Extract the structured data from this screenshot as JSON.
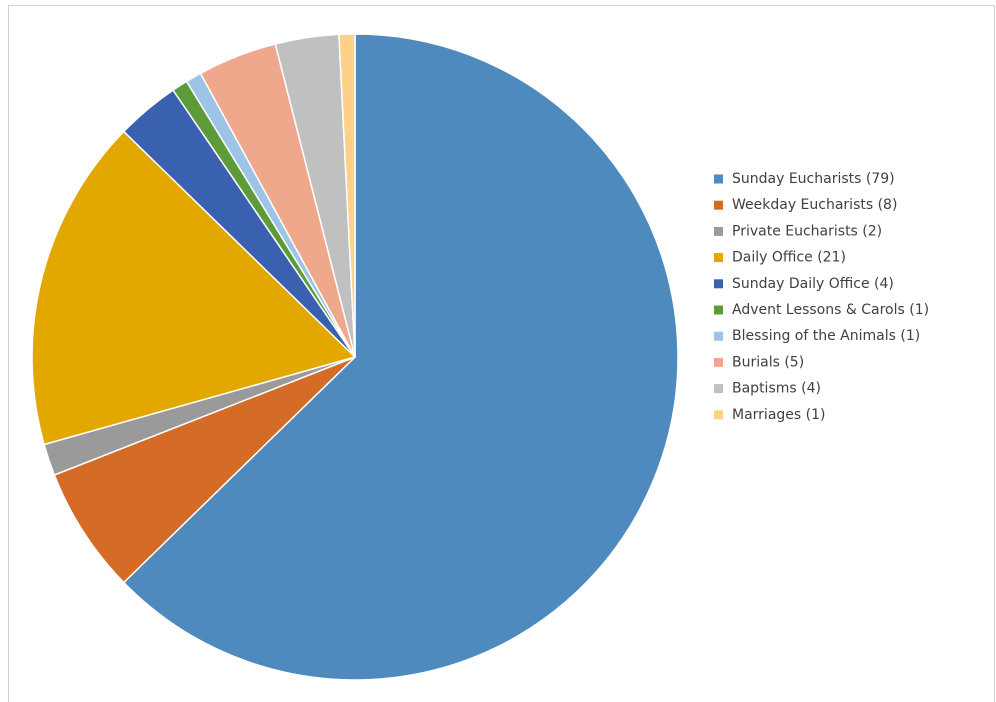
{
  "chart_data": {
    "type": "pie",
    "categories": [
      "Sunday Eucharists (79)",
      "Weekday Eucharists (8)",
      "Private Eucharists (2)",
      "Daily Office (21)",
      "Sunday Daily Office (4)",
      "Advent Lessons & Carols (1)",
      "Blessing of the Animals (1)",
      "Burials (5)",
      "Baptisms (4)",
      "Marriages (1)"
    ],
    "values": [
      79,
      8,
      2,
      21,
      4,
      1,
      1,
      5,
      4,
      1
    ],
    "colors": [
      "#4f8abe",
      "#d46b27",
      "#9a9a9a",
      "#e3a800",
      "#3a60b0",
      "#5d9b3a",
      "#9dc3e6",
      "#f0a88c",
      "#c0c0c0",
      "#ffd08a"
    ],
    "legend": "right"
  }
}
